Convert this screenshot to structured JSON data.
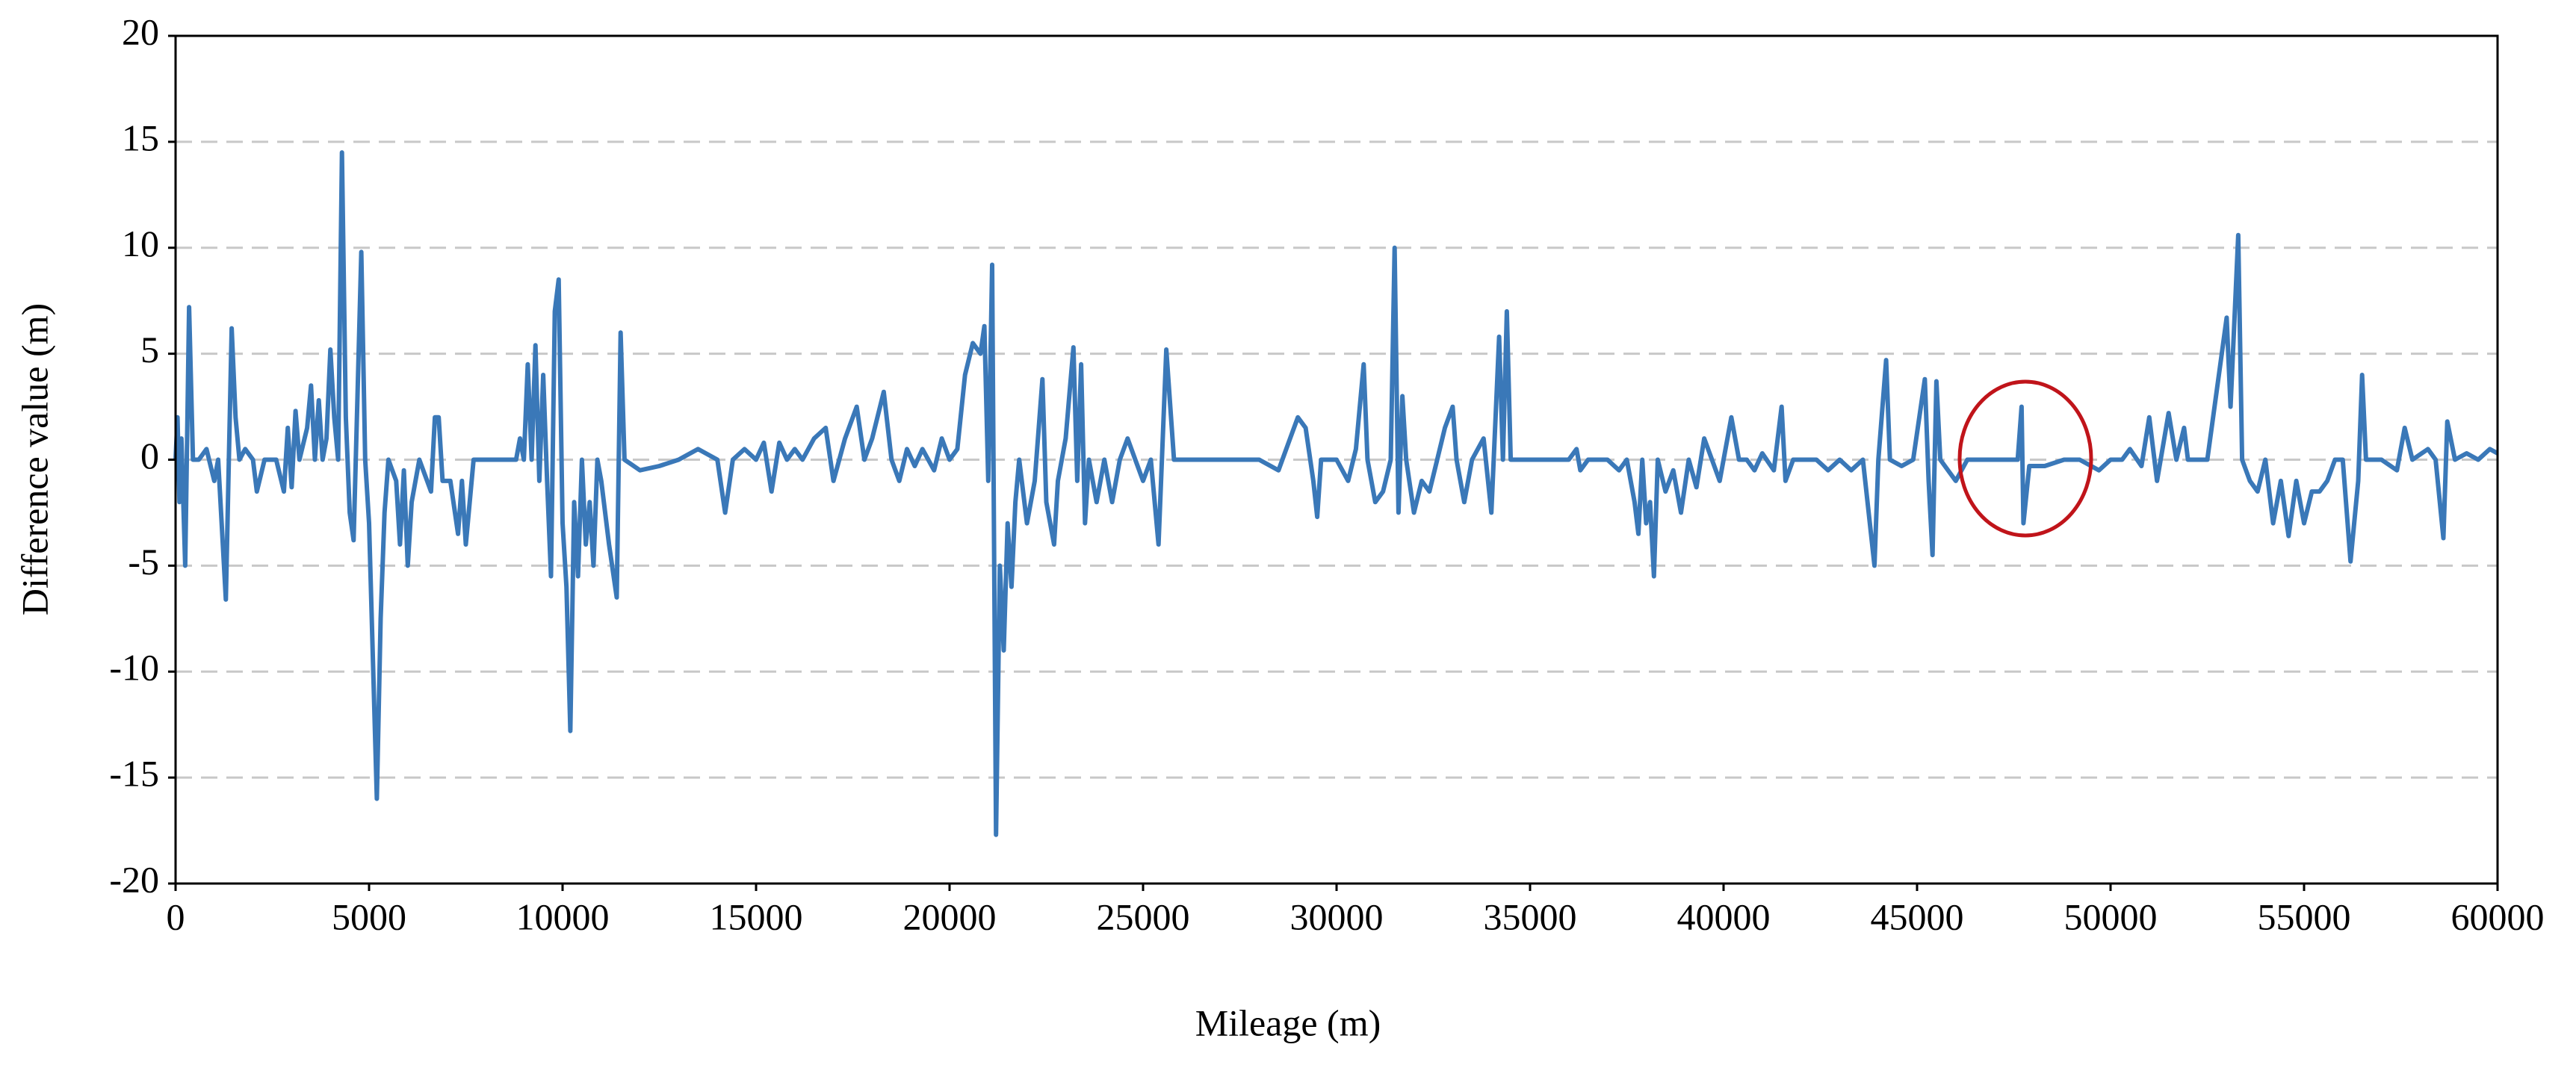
{
  "chart_data": {
    "type": "line",
    "xlabel": "Mileage (m)",
    "ylabel": "Difference value (m)",
    "color": "#3a78b8",
    "xlim": [
      0,
      60000
    ],
    "xticks": [
      0,
      5000,
      10000,
      15000,
      20000,
      25000,
      30000,
      35000,
      40000,
      45000,
      50000,
      55000,
      60000
    ],
    "ylim": [
      -20,
      20
    ],
    "yticks": [
      -20,
      -15,
      -10,
      -5,
      0,
      5,
      10,
      15,
      20
    ],
    "grid": true,
    "x": [
      0,
      50,
      100,
      150,
      250,
      350,
      450,
      600,
      800,
      1000,
      1100,
      1300,
      1450,
      1550,
      1650,
      1800,
      2000,
      2100,
      2300,
      2600,
      2800,
      2900,
      3000,
      3100,
      3200,
      3400,
      3500,
      3600,
      3700,
      3800,
      3900,
      4000,
      4100,
      4200,
      4300,
      4400,
      4500,
      4600,
      4700,
      4800,
      4900,
      5000,
      5200,
      5300,
      5400,
      5500,
      5700,
      5800,
      5900,
      6000,
      6100,
      6300,
      6500,
      6600,
      6700,
      6800,
      6900,
      7100,
      7300,
      7400,
      7500,
      7600,
      7700,
      8500,
      8800,
      8900,
      9000,
      9100,
      9200,
      9300,
      9400,
      9500,
      9600,
      9700,
      9800,
      9900,
      10000,
      10100,
      10200,
      10300,
      10400,
      10500,
      10600,
      10700,
      10800,
      10900,
      11000,
      11200,
      11400,
      11500,
      11600,
      12000,
      12500,
      13000,
      13500,
      14000,
      14200,
      14400,
      14700,
      15000,
      15200,
      15400,
      15600,
      15800,
      16000,
      16200,
      16500,
      16800,
      17000,
      17300,
      17600,
      17800,
      18000,
      18300,
      18500,
      18700,
      18900,
      19100,
      19300,
      19600,
      19800,
      20000,
      20200,
      20400,
      20600,
      20800,
      20900,
      21000,
      21100,
      21200,
      21300,
      21400,
      21500,
      21600,
      21700,
      21800,
      22000,
      22200,
      22400,
      22500,
      22700,
      22800,
      23000,
      23200,
      23300,
      23400,
      23500,
      23600,
      23800,
      24000,
      24200,
      24400,
      24600,
      24800,
      25000,
      25200,
      25400,
      25600,
      25800,
      26500,
      27000,
      27500,
      28000,
      28500,
      28800,
      29000,
      29200,
      29400,
      29500,
      29600,
      30000,
      30300,
      30500,
      30700,
      30800,
      31000,
      31200,
      31400,
      31500,
      31600,
      31700,
      31800,
      32000,
      32200,
      32400,
      32600,
      32800,
      33000,
      33100,
      33300,
      33500,
      33800,
      34000,
      34200,
      34300,
      34400,
      34500,
      35000,
      36000,
      36200,
      36300,
      36500,
      37000,
      37300,
      37500,
      37700,
      37800,
      37900,
      38000,
      38100,
      38200,
      38300,
      38500,
      38700,
      38900,
      39100,
      39300,
      39500,
      39700,
      39900,
      40000,
      40200,
      40400,
      40600,
      40800,
      41000,
      41300,
      41500,
      41600,
      41800,
      42400,
      42700,
      43000,
      43300,
      43600,
      43900,
      44000,
      44200,
      44300,
      44600,
      44900,
      45200,
      45300,
      45400,
      45500,
      45600,
      46000,
      46300,
      47000,
      47600,
      47700,
      47750,
      47900,
      48300,
      48800,
      49200,
      49700,
      50000,
      50300,
      50500,
      50800,
      51000,
      51200,
      51500,
      51700,
      51900,
      52000,
      52500,
      52800,
      53000,
      53100,
      53300,
      53400,
      53600,
      53800,
      54000,
      54200,
      54400,
      54600,
      54800,
      55000,
      55200,
      55400,
      55600,
      55800,
      56000,
      56200,
      56400,
      56500,
      56600,
      57000,
      57400,
      57600,
      57800,
      58200,
      58400,
      58600,
      58700,
      58900,
      59200,
      59500,
      59800,
      60000
    ],
    "values": [
      0,
      2,
      -2,
      1,
      -5,
      7.2,
      0,
      0,
      0.5,
      -1,
      0,
      -6.6,
      6.2,
      2,
      0,
      0.5,
      0,
      -1.5,
      0,
      0,
      -1.5,
      1.5,
      -1.3,
      2.3,
      0,
      1.5,
      3.5,
      0,
      2.8,
      0,
      1,
      5.2,
      2,
      0,
      14.5,
      2,
      -2.5,
      -3.8,
      3,
      9.8,
      0,
      -3,
      -16,
      -7.5,
      -2.5,
      0,
      -1,
      -4,
      -0.5,
      -5,
      -2,
      0,
      -1,
      -1.5,
      2,
      2,
      -1,
      -1,
      -3.5,
      -1,
      -4,
      -2,
      0,
      0,
      0,
      1,
      0,
      4.5,
      0,
      5.4,
      -1,
      4,
      -1,
      -5.5,
      7,
      8.5,
      -3,
      -6,
      -12.8,
      -2,
      -5.5,
      0,
      -4,
      -2,
      -5,
      0,
      -1,
      -4,
      -6.5,
      6,
      0,
      -0.5,
      -0.3,
      0,
      0.5,
      0,
      -2.5,
      0,
      0.5,
      0,
      0.8,
      -1.5,
      0.8,
      0,
      0.5,
      0,
      1,
      1.5,
      -1,
      1,
      2.5,
      0,
      1,
      3.2,
      0,
      -1,
      0.5,
      -0.3,
      0.5,
      -0.5,
      1,
      0,
      0.5,
      4,
      5.5,
      5,
      6.3,
      -1,
      9.2,
      -17.7,
      -5,
      -9,
      -3,
      -6,
      -2,
      0,
      -3,
      -1,
      3.8,
      -2,
      -4,
      -1,
      1,
      5.3,
      -1,
      4.5,
      -3,
      0,
      -2,
      0,
      -2,
      0,
      1,
      0,
      -1,
      0,
      -4,
      5.2,
      0,
      0,
      0,
      0,
      0,
      -0.5,
      1,
      2,
      1.5,
      -1,
      -2.7,
      0,
      0,
      -1,
      0.5,
      4.5,
      0,
      -2,
      -1.5,
      0,
      10,
      -2.5,
      3,
      0,
      -2.5,
      -1,
      -1.5,
      0,
      1.5,
      2.5,
      0,
      -2,
      0,
      1,
      -2.5,
      5.8,
      0,
      7,
      0,
      0,
      0,
      0.5,
      -0.5,
      0,
      0,
      -0.5,
      0,
      -2,
      -3.5,
      0,
      -3,
      -2,
      -5.5,
      0,
      -1.5,
      -0.5,
      -2.5,
      0,
      -1.3,
      1,
      0,
      -1,
      0,
      2,
      0,
      0,
      -0.5,
      0.3,
      -0.5,
      2.5,
      -1,
      0,
      0,
      -0.5,
      0,
      -0.5,
      0,
      -5,
      0,
      4.7,
      0,
      -0.3,
      0,
      3.8,
      -1,
      -4.5,
      3.7,
      0,
      -1,
      0,
      0,
      0,
      2.5,
      -3,
      -0.3,
      -0.3,
      0,
      0,
      -0.5,
      0,
      0,
      0.5,
      -0.3,
      2,
      -1,
      2.2,
      0,
      1.5,
      0,
      0,
      4,
      6.7,
      2.5,
      10.6,
      0,
      -1,
      -1.5,
      0,
      -3,
      -1,
      -3.6,
      -1,
      -3,
      -1.5,
      -1.5,
      -1,
      0,
      0,
      -4.8,
      -1,
      4,
      0,
      0,
      -0.5,
      1.5,
      0,
      0.5,
      0,
      -3.7,
      1.8,
      0,
      0.3,
      0,
      0.5,
      0.3
    ]
  }
}
